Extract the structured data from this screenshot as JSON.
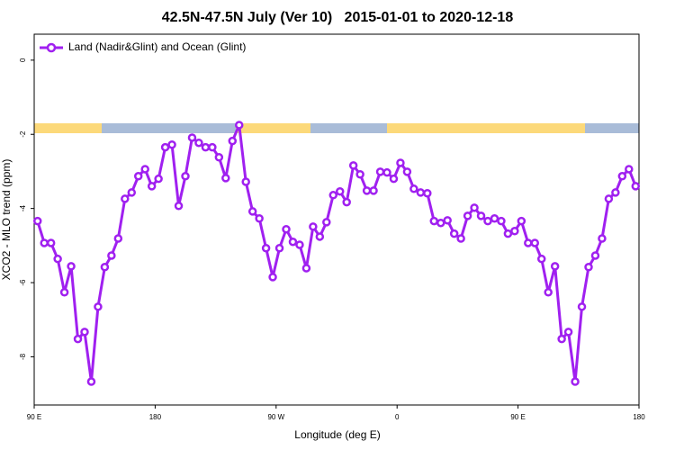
{
  "chart_data": {
    "type": "line",
    "title": "42.5N-47.5N July (Ver 10)   2015-01-01 to 2020-12-18",
    "xlabel": "Longitude (deg E)",
    "ylabel": "XCO2 - MLO trend (ppm)",
    "x": [
      92.5,
      97.5,
      102.5,
      107.5,
      112.5,
      117.5,
      122.5,
      127.5,
      132.5,
      137.5,
      142.5,
      147.5,
      152.5,
      157.5,
      162.5,
      167.5,
      172.5,
      177.5,
      182.5,
      187.5,
      192.5,
      197.5,
      202.5,
      207.5,
      212.5,
      217.5,
      222.5,
      227.5,
      232.5,
      237.5,
      242.5,
      247.5,
      252.5,
      257.5,
      262.5,
      267.5,
      272.5,
      277.5,
      282.5,
      287.5,
      292.5,
      297.5,
      302.5,
      307.5,
      312.5,
      317.5,
      322.5,
      327.5,
      332.5,
      337.5,
      342.5,
      347.5,
      352.5,
      357.5,
      362.5,
      367.5,
      372.5,
      377.5,
      382.5,
      387.5,
      392.5,
      397.5,
      402.5,
      407.5,
      412.5,
      417.5,
      422.5,
      427.5,
      432.5,
      437.5,
      442.5,
      447.5,
      452.5,
      457.5,
      462.5,
      467.5,
      472.5,
      477.5,
      482.5,
      487.5,
      492.5,
      497.5,
      502.5,
      507.5,
      512.5,
      517.5,
      522.5,
      527.5,
      532.5,
      537.5
    ],
    "series": [
      {
        "name": "Land (Nadir&Glint) and Ocean (Glint)",
        "color": "#a020f0",
        "values": [
          -4.34,
          -4.93,
          -4.93,
          -5.36,
          -6.26,
          -5.56,
          -7.52,
          -7.33,
          -8.67,
          -6.65,
          -5.58,
          -5.27,
          -4.81,
          -3.74,
          -3.57,
          -3.13,
          -2.94,
          -3.4,
          -3.2,
          -2.35,
          -2.28,
          -3.93,
          -3.13,
          -2.09,
          -2.23,
          -2.35,
          -2.35,
          -2.62,
          -3.18,
          -2.18,
          -1.75,
          -3.28,
          -4.08,
          -4.27,
          -5.07,
          -5.85,
          -5.07,
          -4.56,
          -4.9,
          -4.98,
          -5.61,
          -4.49,
          -4.76,
          -4.37,
          -3.64,
          -3.54,
          -3.83,
          -2.84,
          -3.08,
          -3.52,
          -3.52,
          -3.01,
          -3.03,
          -3.2,
          -2.77,
          -3.01,
          -3.47,
          -3.57,
          -3.59,
          -4.34,
          -4.39,
          -4.32,
          -4.68,
          -4.81,
          -4.2,
          -3.98,
          -4.2,
          -4.34,
          -4.27,
          -4.34,
          -4.68,
          -4.61,
          -4.34,
          -4.93,
          -4.93,
          -5.36,
          -6.26,
          -5.56,
          -7.52,
          -7.33,
          -8.67,
          -6.65,
          -5.58,
          -5.27,
          -4.81,
          -3.74,
          -3.57,
          -3.13,
          -2.94,
          -3.4
        ]
      }
    ],
    "xlim": [
      90,
      540
    ],
    "xticks": [
      {
        "value": 90,
        "label": "90 E"
      },
      {
        "value": 180,
        "label": "180"
      },
      {
        "value": 270,
        "label": "90 W"
      },
      {
        "value": 360,
        "label": "0"
      },
      {
        "value": 450,
        "label": "90 E"
      },
      {
        "value": 540,
        "label": "180"
      }
    ],
    "ylim": [
      -9.3,
      0.7
    ],
    "yticks": [
      0,
      -2,
      -4,
      -6,
      -8
    ],
    "legend": "top-left"
  }
}
